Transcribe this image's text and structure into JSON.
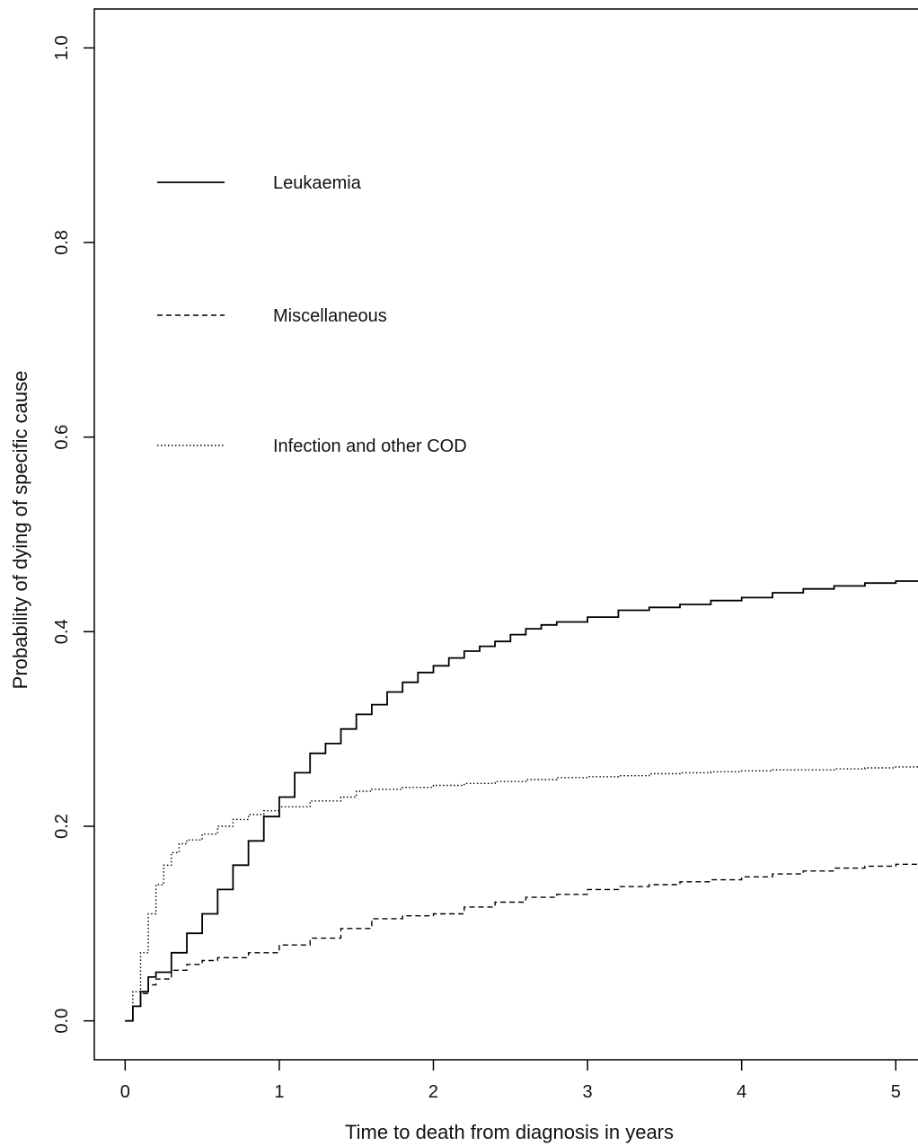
{
  "chart_data": {
    "type": "line",
    "xlabel": "Time to death from diagnosis in years",
    "ylabel": "Probability of dying of specific cause",
    "xlim": [
      -0.2,
      5.15
    ],
    "ylim": [
      -0.04,
      1.04
    ],
    "x_ticks": [
      0,
      1,
      2,
      3,
      4,
      5
    ],
    "x_tick_labels": [
      "0",
      "1",
      "2",
      "3",
      "4",
      "5"
    ],
    "y_ticks": [
      0.0,
      0.2,
      0.4,
      0.6,
      0.8,
      1.0
    ],
    "y_tick_labels": [
      "0.0",
      "0.2",
      "0.4",
      "0.6",
      "0.8",
      "1.0"
    ],
    "legend_position": "top-left",
    "grid": false,
    "series": [
      {
        "name": "Leukaemia",
        "line_style": "solid",
        "x": [
          0,
          0.05,
          0.1,
          0.15,
          0.2,
          0.3,
          0.4,
          0.5,
          0.6,
          0.7,
          0.8,
          0.9,
          1.0,
          1.1,
          1.2,
          1.3,
          1.4,
          1.5,
          1.6,
          1.7,
          1.8,
          1.9,
          2.0,
          2.1,
          2.2,
          2.3,
          2.4,
          2.5,
          2.6,
          2.7,
          2.8,
          3.0,
          3.2,
          3.4,
          3.6,
          3.8,
          4.0,
          4.2,
          4.4,
          4.6,
          4.8,
          5.0,
          5.15
        ],
        "y": [
          0.0,
          0.015,
          0.03,
          0.045,
          0.05,
          0.07,
          0.09,
          0.11,
          0.135,
          0.16,
          0.185,
          0.21,
          0.23,
          0.255,
          0.275,
          0.285,
          0.3,
          0.315,
          0.325,
          0.338,
          0.348,
          0.358,
          0.365,
          0.373,
          0.38,
          0.385,
          0.39,
          0.397,
          0.403,
          0.407,
          0.41,
          0.415,
          0.422,
          0.425,
          0.428,
          0.432,
          0.435,
          0.44,
          0.444,
          0.447,
          0.45,
          0.452,
          0.455
        ]
      },
      {
        "name": "Miscellaneous",
        "line_style": "dashed",
        "x": [
          0,
          0.05,
          0.1,
          0.15,
          0.2,
          0.3,
          0.4,
          0.5,
          0.6,
          0.8,
          1.0,
          1.2,
          1.4,
          1.6,
          1.8,
          2.0,
          2.2,
          2.4,
          2.6,
          2.8,
          3.0,
          3.2,
          3.4,
          3.6,
          3.8,
          4.0,
          4.2,
          4.4,
          4.6,
          4.8,
          5.0,
          5.15
        ],
        "y": [
          0.0,
          0.015,
          0.028,
          0.037,
          0.043,
          0.052,
          0.058,
          0.062,
          0.065,
          0.07,
          0.078,
          0.085,
          0.095,
          0.105,
          0.108,
          0.11,
          0.117,
          0.122,
          0.127,
          0.13,
          0.135,
          0.138,
          0.14,
          0.143,
          0.145,
          0.148,
          0.151,
          0.154,
          0.157,
          0.159,
          0.161,
          0.168
        ]
      },
      {
        "name": "Infection and other COD",
        "line_style": "dotted",
        "x": [
          0,
          0.05,
          0.1,
          0.15,
          0.2,
          0.25,
          0.3,
          0.35,
          0.4,
          0.5,
          0.6,
          0.7,
          0.8,
          0.9,
          1.0,
          1.2,
          1.4,
          1.5,
          1.6,
          1.8,
          2.0,
          2.2,
          2.4,
          2.6,
          2.8,
          3.0,
          3.2,
          3.4,
          3.6,
          3.8,
          4.0,
          4.2,
          4.4,
          4.6,
          4.8,
          5.0,
          5.15
        ],
        "y": [
          0.0,
          0.03,
          0.07,
          0.11,
          0.14,
          0.16,
          0.173,
          0.182,
          0.186,
          0.192,
          0.2,
          0.207,
          0.212,
          0.216,
          0.22,
          0.226,
          0.23,
          0.236,
          0.238,
          0.24,
          0.242,
          0.244,
          0.246,
          0.248,
          0.25,
          0.251,
          0.252,
          0.254,
          0.255,
          0.256,
          0.257,
          0.258,
          0.258,
          0.259,
          0.26,
          0.261,
          0.262
        ]
      }
    ]
  }
}
